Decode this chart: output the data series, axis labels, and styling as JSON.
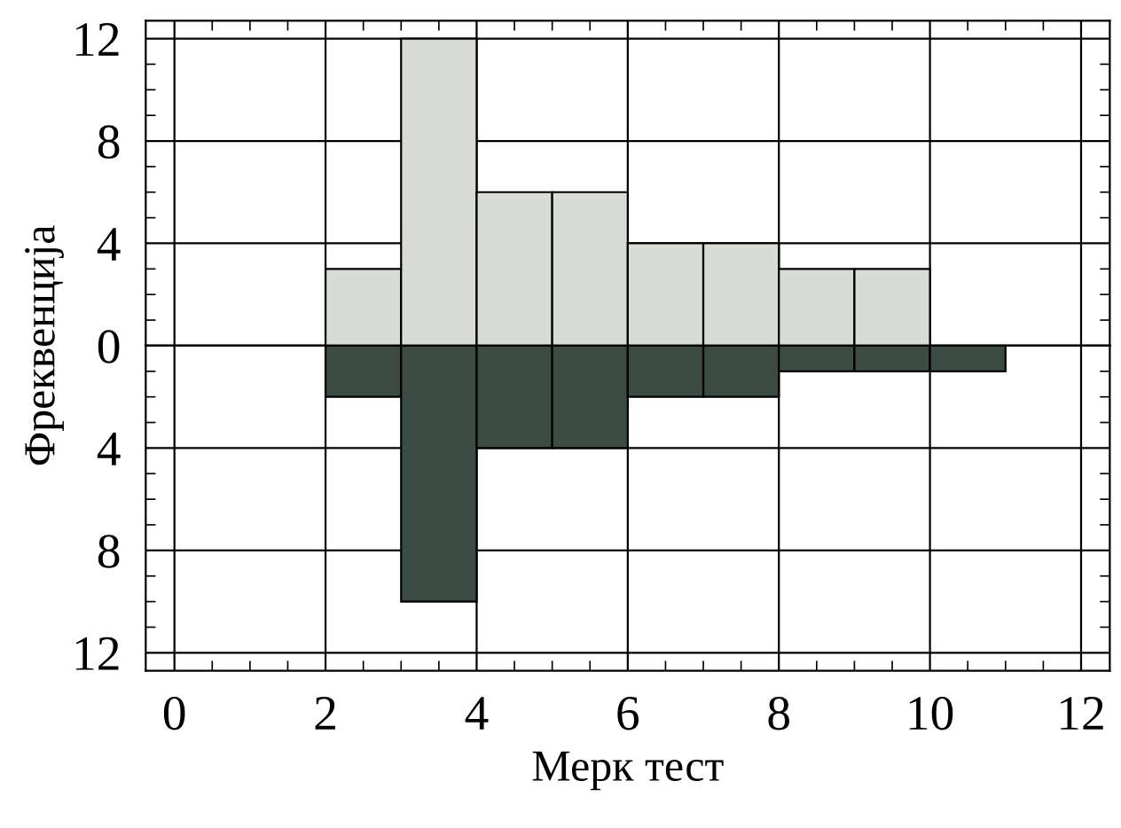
{
  "chart_data": [
    {
      "type": "histogram",
      "ylabel": "Фреквенција",
      "bins": [
        2,
        3,
        4,
        5,
        6,
        7,
        8,
        9,
        10,
        11
      ],
      "series": [
        {
          "color": "#d9dcd6",
          "values": [
            3,
            12,
            6,
            6,
            4,
            4,
            3,
            3,
            null
          ]
        }
      ],
      "xlim": [
        -0.38,
        12.38
      ],
      "xticks": [
        0,
        2,
        4,
        6,
        8,
        10,
        12
      ],
      "ylim": [
        0,
        12.7
      ],
      "yticks": [
        0,
        4,
        8,
        12
      ],
      "tick_labels": "y",
      "grid": true
    },
    {
      "type": "histogram",
      "xlabel": "Мерк тест",
      "bins": [
        2,
        3,
        4,
        5,
        6,
        7,
        8,
        9,
        10,
        11
      ],
      "series": [
        {
          "color": "#3b4a42",
          "values": [
            2,
            10,
            4,
            4,
            2,
            2,
            1,
            1,
            1
          ]
        }
      ],
      "xlim": [
        -0.38,
        12.38
      ],
      "xticks": [
        0,
        2,
        4,
        6,
        8,
        10,
        12
      ],
      "ylim": [
        12.7,
        0
      ],
      "yticks": [
        4,
        8,
        12
      ],
      "grid": true
    }
  ]
}
